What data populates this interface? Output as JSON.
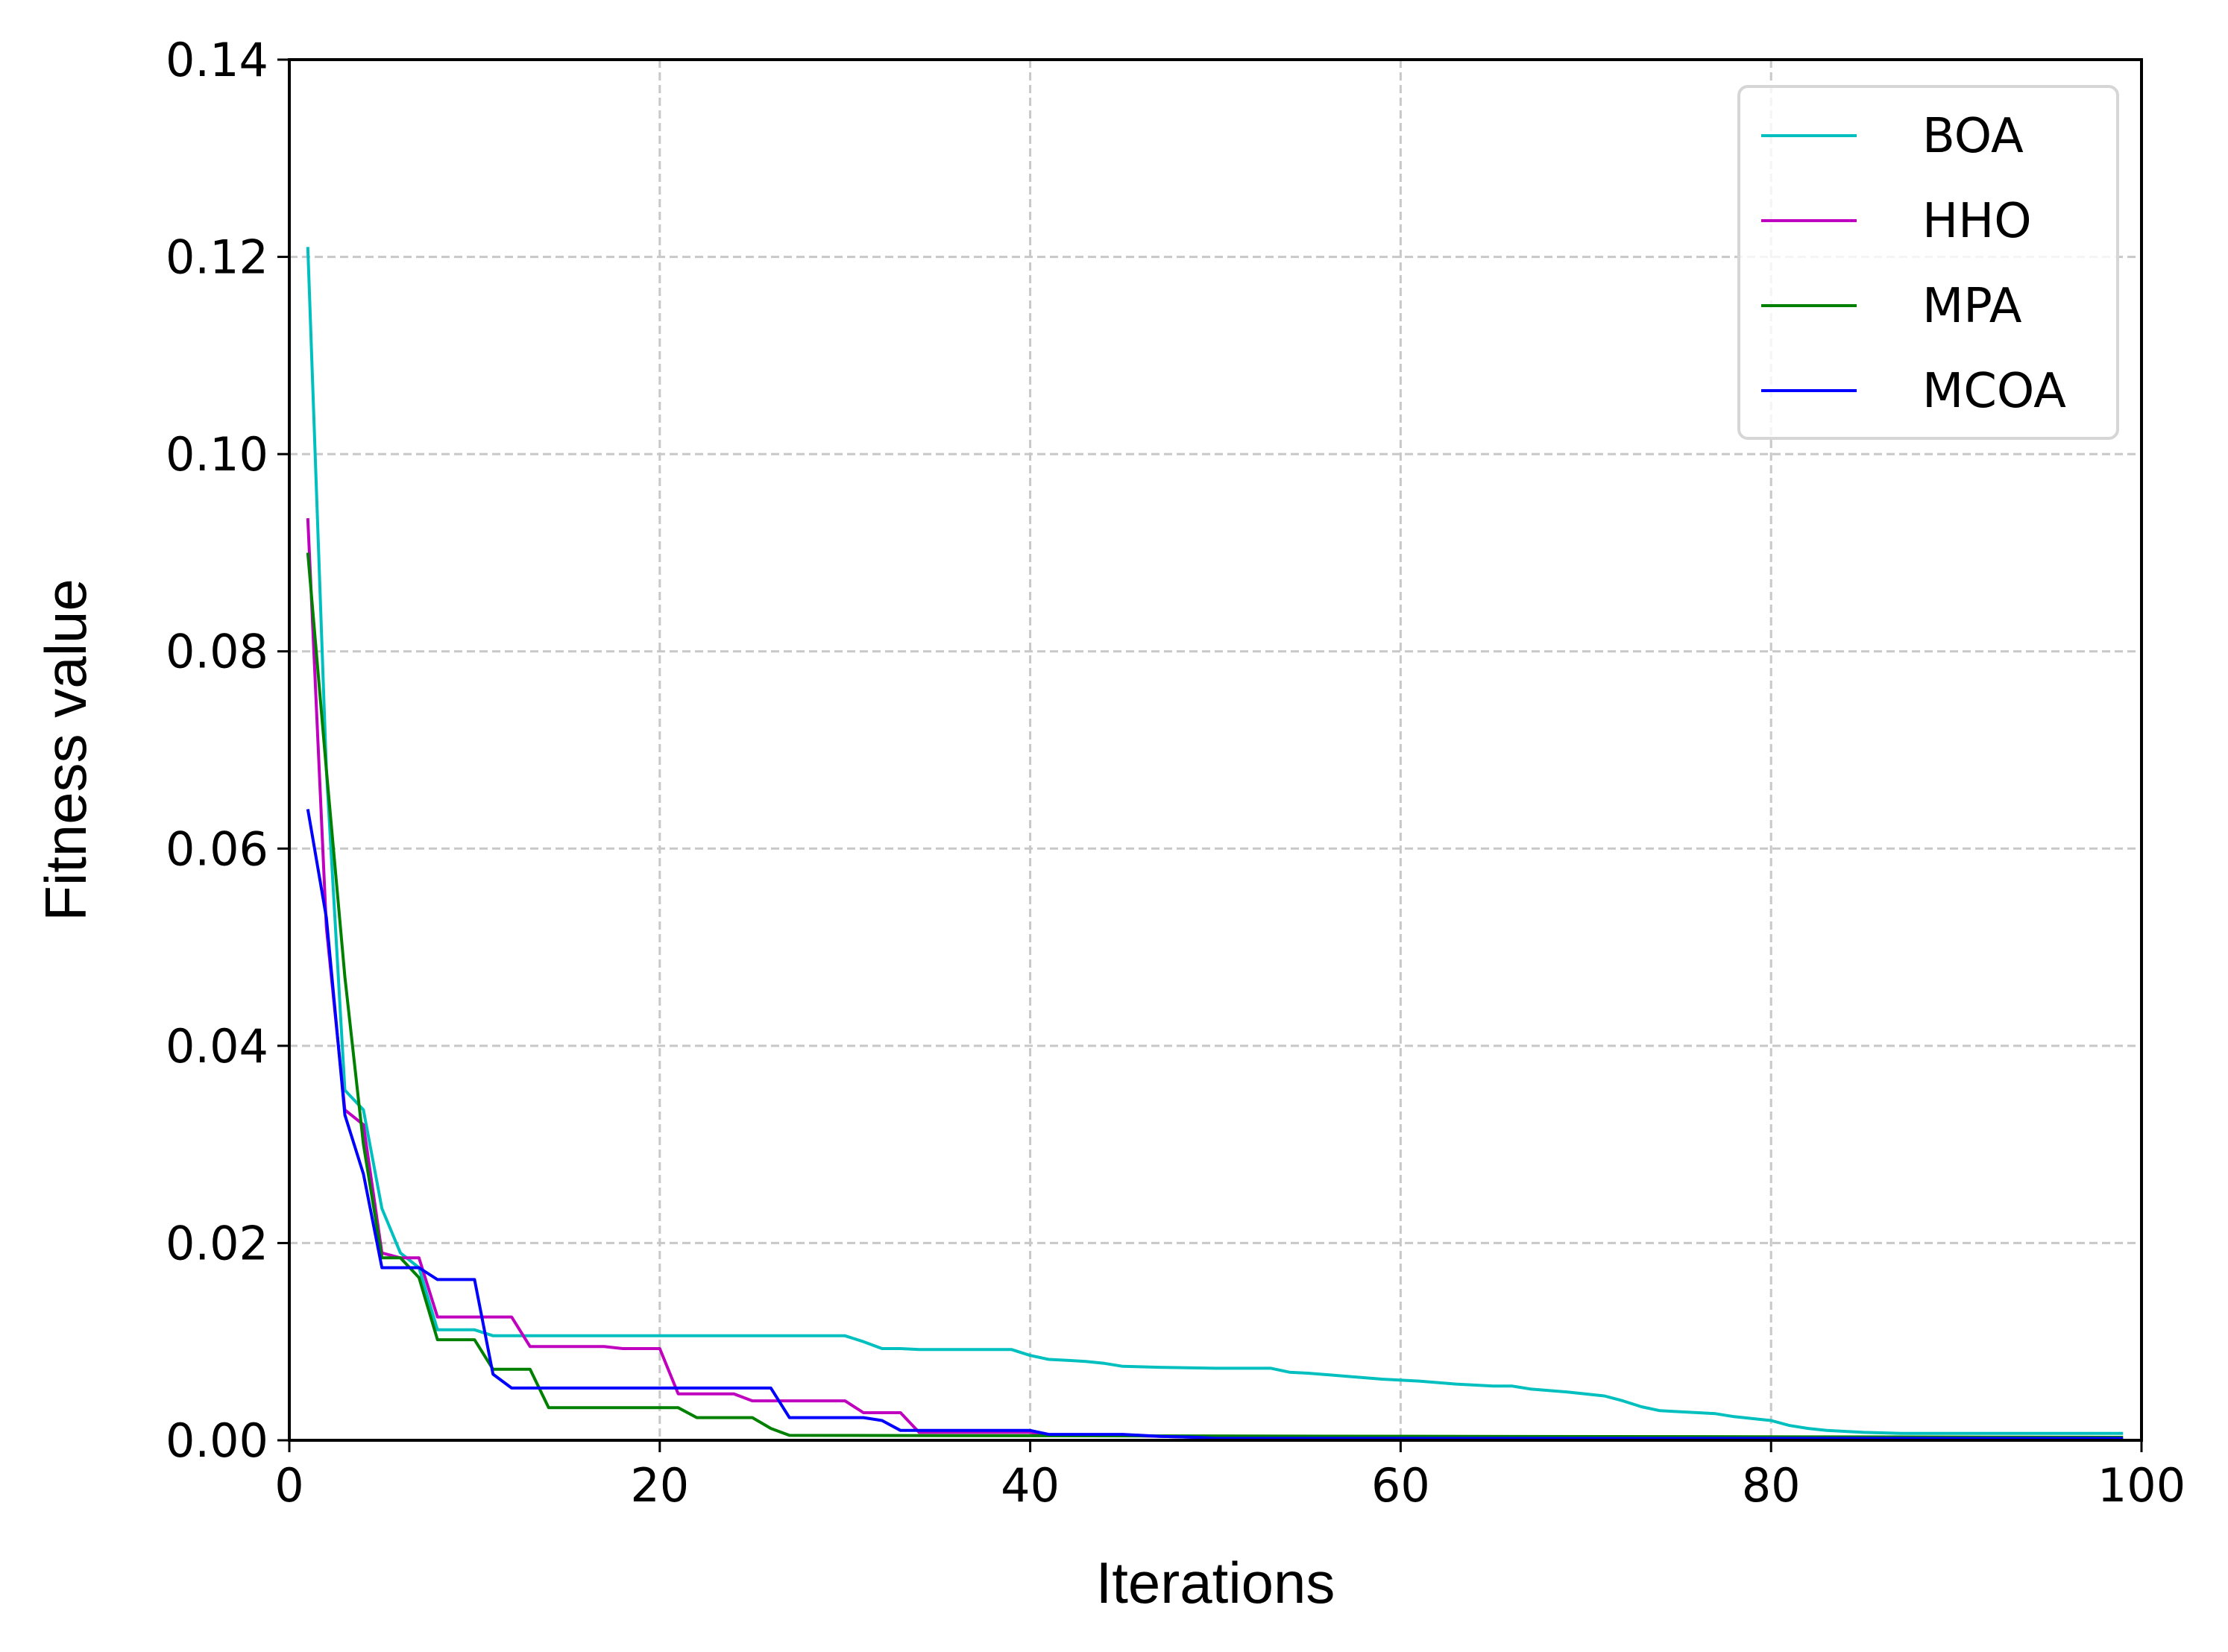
{
  "chart_data": {
    "type": "line",
    "title": "",
    "xlabel": "Iterations",
    "ylabel": "Fitness value",
    "xlim": [
      0,
      100
    ],
    "ylim": [
      0,
      0.14
    ],
    "xticks": [
      0,
      20,
      40,
      60,
      80,
      100
    ],
    "xtick_labels": [
      "0",
      "20",
      "40",
      "60",
      "80",
      "100"
    ],
    "yticks": [
      0,
      0.02,
      0.04,
      0.06,
      0.08,
      0.1,
      0.12,
      0.14
    ],
    "ytick_labels": [
      "0.00",
      "0.02",
      "0.04",
      "0.06",
      "0.08",
      "0.10",
      "0.12",
      "0.14"
    ],
    "grid": true,
    "legend_position": "top-right",
    "series": [
      {
        "name": "BOA",
        "color": "#00bfbf",
        "points": [
          [
            1,
            0.121
          ],
          [
            2,
            0.068
          ],
          [
            3,
            0.0355
          ],
          [
            4,
            0.0335
          ],
          [
            5,
            0.0235
          ],
          [
            6,
            0.019
          ],
          [
            7,
            0.0175
          ],
          [
            8,
            0.0112
          ],
          [
            9,
            0.0112
          ],
          [
            10,
            0.0112
          ],
          [
            11,
            0.0106
          ],
          [
            29,
            0.0106
          ],
          [
            30,
            0.0106
          ],
          [
            31,
            0.01
          ],
          [
            32,
            0.0093
          ],
          [
            33,
            0.0093
          ],
          [
            34,
            0.0092
          ],
          [
            39,
            0.0092
          ],
          [
            40,
            0.0086
          ],
          [
            41,
            0.0082
          ],
          [
            42,
            0.0081
          ],
          [
            43,
            0.008
          ],
          [
            44,
            0.0078
          ],
          [
            45,
            0.0075
          ],
          [
            47,
            0.0074
          ],
          [
            50,
            0.0073
          ],
          [
            53,
            0.0073
          ],
          [
            54,
            0.0069
          ],
          [
            55,
            0.0068
          ],
          [
            57,
            0.0065
          ],
          [
            59,
            0.0062
          ],
          [
            61,
            0.006
          ],
          [
            63,
            0.0057
          ],
          [
            65,
            0.0055
          ],
          [
            66,
            0.0055
          ],
          [
            67,
            0.0052
          ],
          [
            69,
            0.0049
          ],
          [
            71,
            0.0045
          ],
          [
            72,
            0.004
          ],
          [
            73,
            0.0034
          ],
          [
            74,
            0.003
          ],
          [
            75,
            0.0029
          ],
          [
            77,
            0.0027
          ],
          [
            78,
            0.0024
          ],
          [
            80,
            0.002
          ],
          [
            81,
            0.0015
          ],
          [
            82,
            0.0012
          ],
          [
            83,
            0.001
          ],
          [
            85,
            0.0008
          ],
          [
            87,
            0.0007
          ],
          [
            99,
            0.0007
          ]
        ]
      },
      {
        "name": "HHO",
        "color": "#bf00bf",
        "points": [
          [
            1,
            0.0935
          ],
          [
            2,
            0.052
          ],
          [
            3,
            0.0335
          ],
          [
            4,
            0.032
          ],
          [
            5,
            0.019
          ],
          [
            6,
            0.0185
          ],
          [
            7,
            0.0185
          ],
          [
            8,
            0.0125
          ],
          [
            12,
            0.0125
          ],
          [
            13,
            0.0095
          ],
          [
            17,
            0.0095
          ],
          [
            18,
            0.0093
          ],
          [
            20,
            0.0093
          ],
          [
            21,
            0.0047
          ],
          [
            24,
            0.0047
          ],
          [
            25,
            0.004
          ],
          [
            30,
            0.004
          ],
          [
            31,
            0.0028
          ],
          [
            33,
            0.0028
          ],
          [
            34,
            0.0008
          ],
          [
            40,
            0.0008
          ],
          [
            41,
            0.0005
          ],
          [
            45,
            0.0005
          ],
          [
            47,
            0.0004
          ],
          [
            49,
            0.0003
          ],
          [
            50,
            0.0002
          ],
          [
            99,
            0.0002
          ]
        ]
      },
      {
        "name": "MPA",
        "color": "#008000",
        "points": [
          [
            1,
            0.09
          ],
          [
            2,
            0.068
          ],
          [
            3,
            0.047
          ],
          [
            4,
            0.03
          ],
          [
            5,
            0.0185
          ],
          [
            6,
            0.0185
          ],
          [
            7,
            0.0165
          ],
          [
            8,
            0.0102
          ],
          [
            10,
            0.0102
          ],
          [
            11,
            0.0072
          ],
          [
            13,
            0.0072
          ],
          [
            14,
            0.0033
          ],
          [
            21,
            0.0033
          ],
          [
            22,
            0.0023
          ],
          [
            25,
            0.0023
          ],
          [
            26,
            0.0012
          ],
          [
            27,
            0.0005
          ],
          [
            99,
            0.0003
          ]
        ]
      },
      {
        "name": "MCOA",
        "color": "#0000ff",
        "points": [
          [
            1,
            0.064
          ],
          [
            2,
            0.053
          ],
          [
            3,
            0.033
          ],
          [
            4,
            0.027
          ],
          [
            5,
            0.0175
          ],
          [
            7,
            0.0175
          ],
          [
            8,
            0.0163
          ],
          [
            10,
            0.0163
          ],
          [
            11,
            0.0067
          ],
          [
            12,
            0.0053
          ],
          [
            26,
            0.0053
          ],
          [
            27,
            0.0023
          ],
          [
            31,
            0.0023
          ],
          [
            32,
            0.002
          ],
          [
            33,
            0.001
          ],
          [
            40,
            0.001
          ],
          [
            41,
            0.0006
          ],
          [
            45,
            0.0006
          ],
          [
            47,
            0.0004
          ],
          [
            49,
            0.0003
          ],
          [
            50,
            0.0002
          ],
          [
            99,
            0.0002
          ]
        ]
      }
    ]
  }
}
